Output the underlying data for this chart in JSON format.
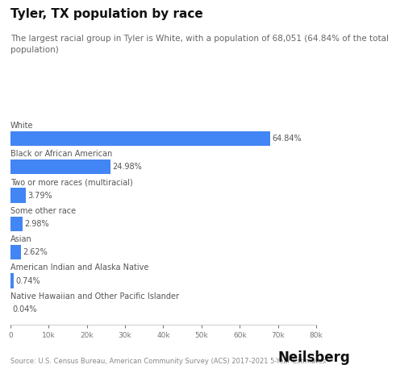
{
  "title": "Tyler, TX population by race",
  "subtitle": "The largest racial group in Tyler is White, with a population of 68,051 (64.84% of the total\npopulation)",
  "categories": [
    "White",
    "Black or African American",
    "Two or more races (multiracial)",
    "Some other race",
    "Asian",
    "American Indian and Alaska Native",
    "Native Hawaiian and Other Pacific Islander"
  ],
  "values": [
    68051,
    26230,
    3980,
    3130,
    2751,
    777,
    42
  ],
  "percentages": [
    64.84,
    24.98,
    3.79,
    2.98,
    2.62,
    0.74,
    0.04
  ],
  "bar_color": "#4285F4",
  "background_color": "#ffffff",
  "xlim": [
    0,
    80000
  ],
  "xtick_values": [
    0,
    10000,
    20000,
    30000,
    40000,
    50000,
    60000,
    70000,
    80000
  ],
  "source_text": "Source: U.S. Census Bureau, American Community Survey (ACS) 2017-2021 5-Year Estimates",
  "brand_text": "Neilsberg",
  "title_fontsize": 11,
  "subtitle_fontsize": 7.5,
  "label_fontsize": 7,
  "pct_fontsize": 7,
  "tick_fontsize": 6.5,
  "source_fontsize": 6,
  "brand_fontsize": 12
}
